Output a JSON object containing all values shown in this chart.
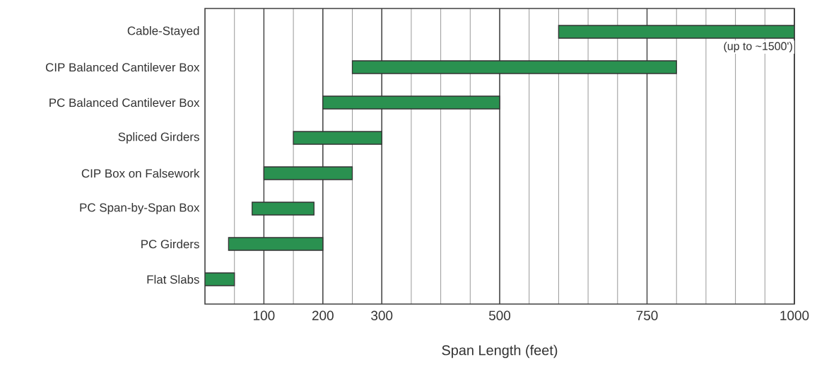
{
  "chart_data": {
    "type": "bar",
    "orientation": "horizontal",
    "xlabel": "Span Length (feet)",
    "categories": [
      "Cable-Stayed",
      "CIP Balanced Cantilever Box",
      "PC Balanced Cantilever Box",
      "Spliced Girders",
      "CIP Box on Falsework",
      "PC Span-by-Span Box",
      "PC Girders",
      "Flat Slabs"
    ],
    "base": [
      600,
      250,
      200,
      150,
      100,
      80,
      40,
      0
    ],
    "values": [
      400,
      550,
      300,
      150,
      150,
      105,
      160,
      50
    ],
    "color": "#2a9150",
    "xlim": [
      0,
      1000
    ],
    "xticks": [
      {
        "value": 50,
        "label": null
      },
      100,
      {
        "value": 150,
        "label": null
      },
      200,
      {
        "value": 250,
        "label": null
      },
      300,
      {
        "value": 350,
        "label": null
      },
      {
        "value": 400,
        "label": null
      },
      {
        "value": 450,
        "label": null
      },
      500,
      {
        "value": 550,
        "label": null
      },
      {
        "value": 600,
        "label": null
      },
      {
        "value": 650,
        "label": null
      },
      {
        "value": 700,
        "label": null
      },
      750,
      {
        "value": 800,
        "label": null
      },
      {
        "value": 850,
        "label": null
      },
      {
        "value": 900,
        "label": null
      },
      {
        "value": 950,
        "label": null
      },
      1000
    ],
    "grid": "x",
    "annotations": [
      {
        "text": "(up to ~1500')",
        "x": 1000,
        "y": "Cable-Stayed"
      }
    ]
  }
}
